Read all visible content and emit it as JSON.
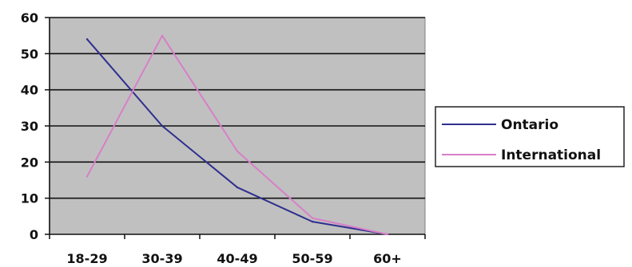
{
  "chart_data": {
    "type": "line",
    "categories": [
      "18-29",
      "30-39",
      "40-49",
      "50-59",
      "60+"
    ],
    "series": [
      {
        "name": "Ontario",
        "values": [
          54,
          30,
          13,
          3.5,
          0
        ],
        "color": "#2f2f8f"
      },
      {
        "name": "International",
        "values": [
          16,
          55,
          23,
          4.5,
          0
        ],
        "color": "#d77fc8"
      }
    ],
    "ylim": [
      0,
      60
    ],
    "yticks": [
      0,
      10,
      20,
      30,
      40,
      50,
      60
    ],
    "grid": true,
    "plot_background": "#c0c0c0",
    "legend_position": "right",
    "title": "",
    "xlabel": "",
    "ylabel": ""
  }
}
